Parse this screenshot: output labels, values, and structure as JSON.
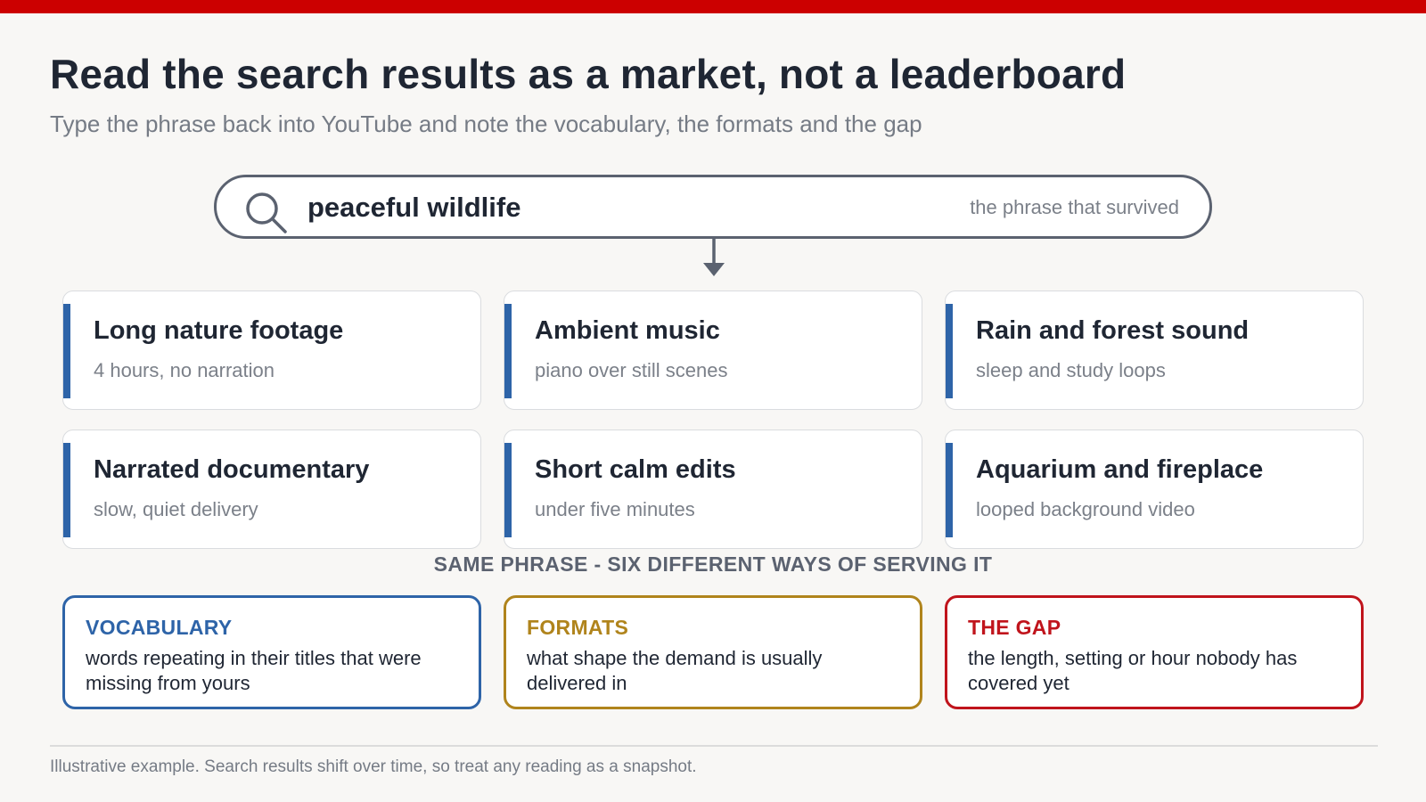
{
  "header": {
    "title": "Read the search results as a market, not a leaderboard",
    "subtitle": "Type the phrase back into YouTube and note the vocabulary, the formats and the gap"
  },
  "search": {
    "icon": "search-icon",
    "query": "peaceful wildlife",
    "hint": "the phrase that survived"
  },
  "results": [
    {
      "title": "Long nature footage",
      "subtitle": "4 hours, no narration"
    },
    {
      "title": "Ambient music",
      "subtitle": "piano over still scenes"
    },
    {
      "title": "Rain and forest sound",
      "subtitle": "sleep and study loops"
    },
    {
      "title": "Narrated documentary",
      "subtitle": "slow, quiet delivery"
    },
    {
      "title": "Short calm edits",
      "subtitle": "under five minutes"
    },
    {
      "title": "Aquarium and fireplace",
      "subtitle": "looped background video"
    }
  ],
  "caption": "SAME PHRASE - SIX DIFFERENT WAYS OF SERVING IT",
  "takeaways": [
    {
      "title": "VOCABULARY",
      "body": "words repeating in their titles that were missing from yours",
      "color": "#2e64a8"
    },
    {
      "title": "FORMATS",
      "body": "what shape the demand is usually delivered in",
      "color": "#b0841c"
    },
    {
      "title": "THE GAP",
      "body": "the length, setting or hour nobody has covered yet",
      "color": "#c0141c"
    }
  ],
  "colors": {
    "accent_bar": "#cc0000",
    "card_accent": "#2e64a8"
  },
  "footnote": "Illustrative example. Search results shift over time, so treat any reading as a snapshot."
}
